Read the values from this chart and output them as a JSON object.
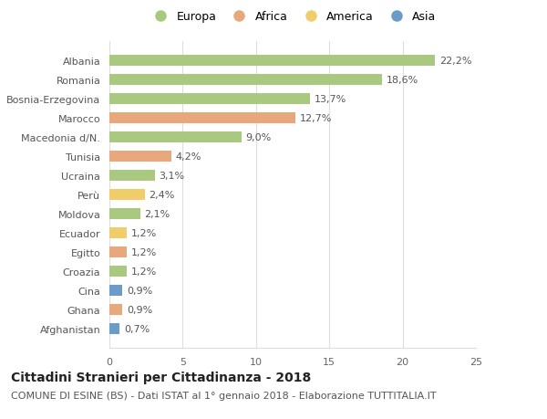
{
  "countries": [
    "Afghanistan",
    "Ghana",
    "Cina",
    "Croazia",
    "Egitto",
    "Ecuador",
    "Moldova",
    "Perù",
    "Ucraina",
    "Tunisia",
    "Macedonia d/N.",
    "Marocco",
    "Bosnia-Erzegovina",
    "Romania",
    "Albania"
  ],
  "values": [
    0.7,
    0.9,
    0.9,
    1.2,
    1.2,
    1.2,
    2.1,
    2.4,
    3.1,
    4.2,
    9.0,
    12.7,
    13.7,
    18.6,
    22.2
  ],
  "continents": [
    "Asia",
    "Africa",
    "Asia",
    "Europa",
    "Africa",
    "America",
    "Europa",
    "America",
    "Europa",
    "Africa",
    "Europa",
    "Africa",
    "Europa",
    "Europa",
    "Europa"
  ],
  "colors": {
    "Europa": "#a8c97f",
    "Africa": "#e8a87c",
    "America": "#f0cc6a",
    "Asia": "#6b9bc9"
  },
  "legend_order": [
    "Europa",
    "Africa",
    "America",
    "Asia"
  ],
  "legend_colors": {
    "Europa": "#a8c97f",
    "Africa": "#e8a87c",
    "America": "#f0cc6a",
    "Asia": "#6b9bc9"
  },
  "xlim": [
    0,
    25
  ],
  "xticks": [
    0,
    5,
    10,
    15,
    20,
    25
  ],
  "title": "Cittadini Stranieri per Cittadinanza - 2018",
  "subtitle": "COMUNE DI ESINE (BS) - Dati ISTAT al 1° gennaio 2018 - Elaborazione TUTTITALIA.IT",
  "title_fontsize": 10,
  "subtitle_fontsize": 8,
  "bar_height": 0.55,
  "background_color": "#ffffff",
  "grid_color": "#dddddd",
  "tick_fontsize": 8,
  "value_fontsize": 8,
  "legend_fontsize": 9
}
